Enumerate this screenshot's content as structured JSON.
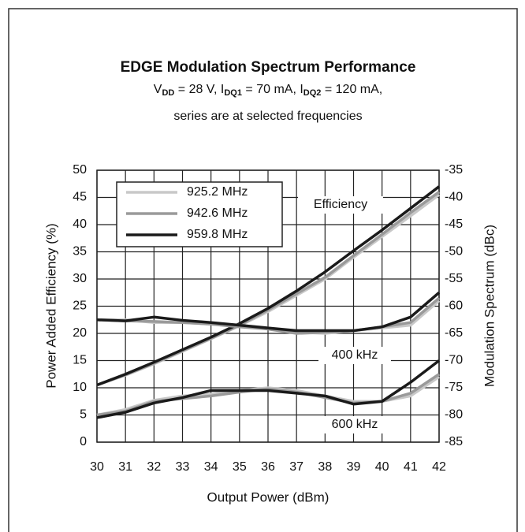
{
  "chart_data": {
    "type": "line",
    "title": "EDGE Modulation Spectrum Performance",
    "subtitle_parts": [
      "V",
      "DD",
      " = 28 V,  I",
      "DQ1",
      " = 70 mA, I",
      "DQ2",
      " = 120 mA,"
    ],
    "subtitle2": "series are at selected frequencies",
    "xlabel": "Output Power (dBm)",
    "ylabel": "Power Added Efficiency (%)",
    "y2label": "Modulation Spectrum (dBc)",
    "x": [
      30,
      31,
      32,
      33,
      34,
      35,
      36,
      37,
      38,
      39,
      40,
      41,
      42
    ],
    "xlim": [
      30,
      42
    ],
    "xticks": [
      30,
      31,
      32,
      33,
      34,
      35,
      36,
      37,
      38,
      39,
      40,
      41,
      42
    ],
    "ylim": [
      0,
      50
    ],
    "yticks": [
      0,
      5,
      10,
      15,
      20,
      25,
      30,
      35,
      40,
      45,
      50
    ],
    "y2lim": [
      -85,
      -35
    ],
    "y2ticks": [
      -85,
      -80,
      -75,
      -70,
      -65,
      -60,
      -55,
      -50,
      -45,
      -40,
      -35
    ],
    "grid": true,
    "legend": "upper left",
    "annotations": [
      "Efficiency",
      "400 kHz",
      "600 kHz"
    ],
    "series": [
      {
        "name": "925.2 MHz",
        "color": "#c8c8c8",
        "values": [
          10.5,
          12.3,
          14.4,
          16.7,
          19,
          21.4,
          24,
          27,
          30,
          34,
          37.8,
          41.6,
          45.5
        ],
        "values_400": [
          -62.5,
          -62.5,
          -63,
          -63,
          -63.3,
          -63.5,
          -64,
          -64.8,
          -65,
          -64.5,
          -64,
          -63.5,
          -59
        ],
        "values_600": [
          -80,
          -79,
          -77.3,
          -76.5,
          -76.2,
          -75.5,
          -75,
          -75.5,
          -76.5,
          -77.5,
          -77.5,
          -76.5,
          -73
        ],
        "axis_400": "y2",
        "axis_600": "y2"
      },
      {
        "name": "942.6 MHz",
        "color": "#9a9a9a",
        "values": [
          10.5,
          12.4,
          14.5,
          16.8,
          19.1,
          21.5,
          24.3,
          27.3,
          30.3,
          34.3,
          38.2,
          42.2,
          46
        ],
        "values_400": [
          -62.5,
          -62.7,
          -62.8,
          -63,
          -63.3,
          -63.8,
          -64.2,
          -65,
          -64.8,
          -64.5,
          -63.8,
          -63,
          -58.5
        ],
        "values_600": [
          -80,
          -79.3,
          -77.5,
          -77,
          -76.5,
          -75.8,
          -75.2,
          -75.8,
          -76.8,
          -77.8,
          -77.5,
          -76,
          -72.5
        ],
        "axis_400": "y2",
        "axis_600": "y2"
      },
      {
        "name": "959.8 MHz",
        "color": "#1a1a1a",
        "values": [
          10.5,
          12.5,
          14.7,
          17,
          19.3,
          21.8,
          24.6,
          27.8,
          31.3,
          35.2,
          39,
          43,
          47
        ],
        "values_400": [
          -62.5,
          -62.7,
          -62,
          -62.6,
          -63,
          -63.5,
          -64,
          -64.5,
          -64.5,
          -64.5,
          -63.8,
          -62,
          -57.5
        ],
        "values_600": [
          -80.5,
          -79.5,
          -77.8,
          -76.8,
          -75.5,
          -75.5,
          -75.5,
          -76,
          -76.5,
          -78,
          -77.5,
          -74,
          -70
        ],
        "axis_400": "y2",
        "axis_600": "y2"
      }
    ]
  }
}
